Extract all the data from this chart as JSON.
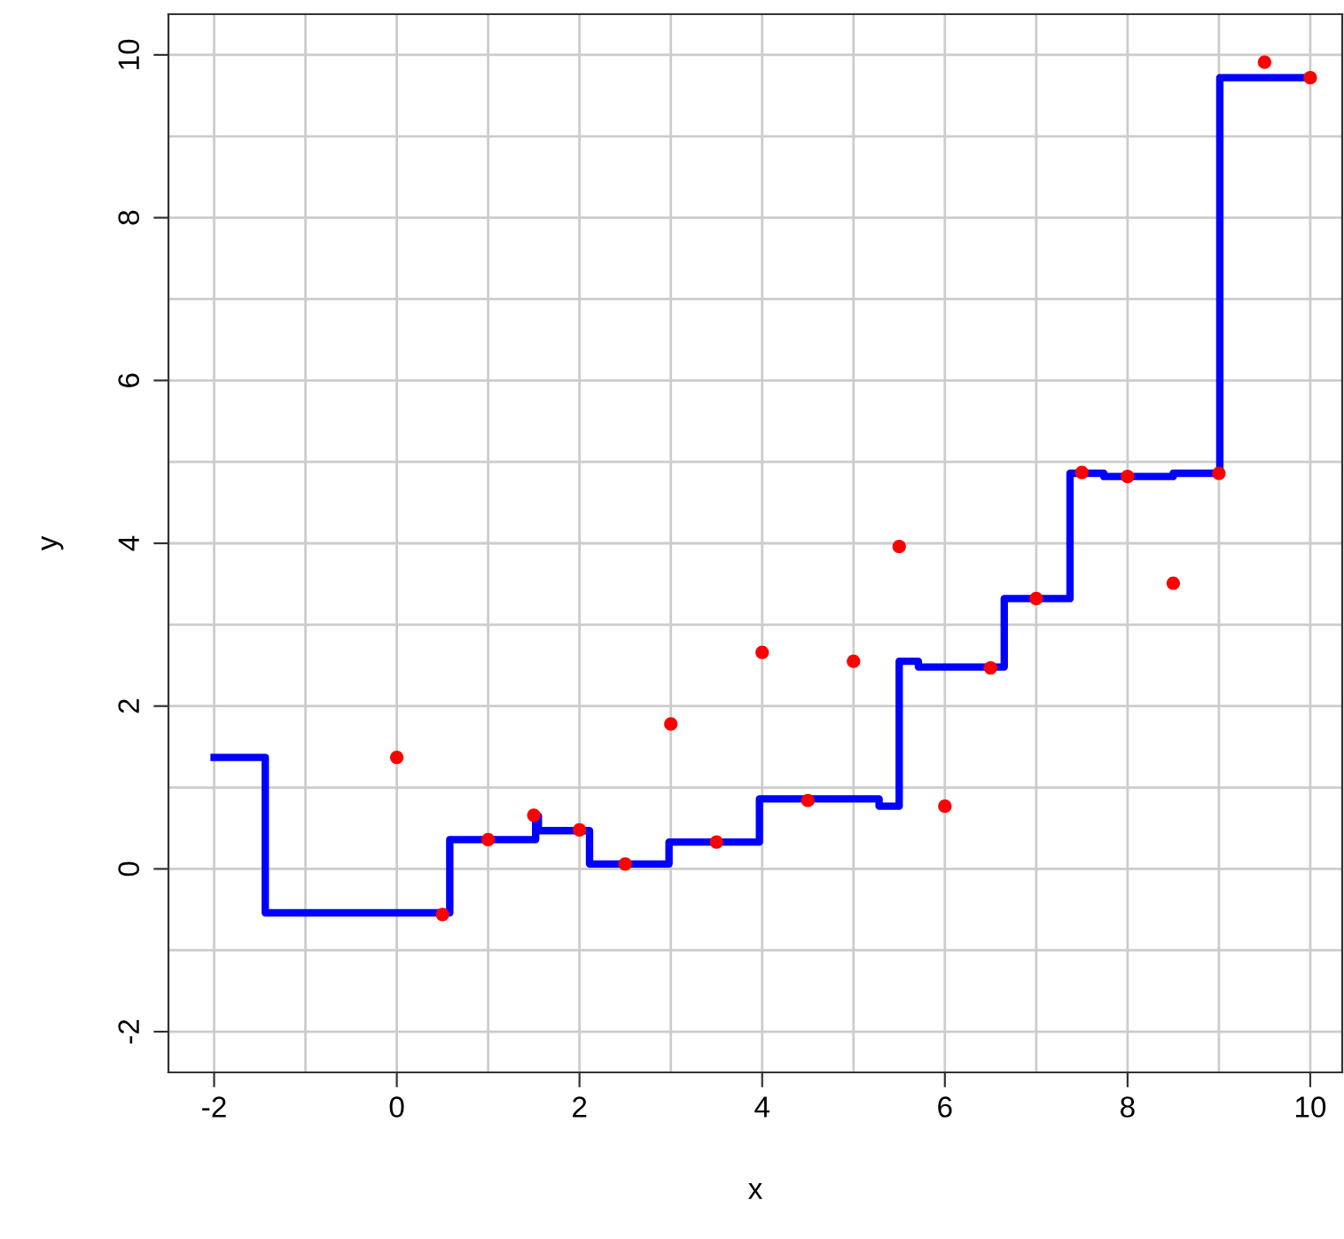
{
  "chart_data": {
    "type": "scatter",
    "xlabel": "x",
    "ylabel": "y",
    "xlim": [
      -2.5,
      10.35
    ],
    "ylim": [
      -2.5,
      10.5
    ],
    "xticks": [
      -2,
      0,
      2,
      4,
      6,
      8,
      10
    ],
    "yticks": [
      -2,
      0,
      2,
      4,
      6,
      8,
      10
    ],
    "grid": true,
    "series": [
      {
        "color": "#ff0000",
        "marker": "circle",
        "x": [
          0,
          0.5,
          1,
          1.5,
          2,
          2.5,
          3,
          3.5,
          4,
          4.5,
          5,
          5.5,
          6,
          6.5,
          7,
          7.5,
          8,
          8.5,
          9,
          9.5,
          10
        ],
        "values": [
          1.37,
          -0.56,
          0.36,
          0.66,
          0.48,
          0.06,
          1.78,
          0.33,
          2.66,
          0.84,
          2.55,
          3.96,
          0.77,
          2.47,
          3.32,
          4.87,
          4.82,
          3.51,
          4.86,
          9.91,
          9.72
        ]
      },
      {
        "type": "step",
        "color": "#0000ff",
        "line_style": "solid",
        "x": [
          -2,
          -1.44,
          0.58,
          1.52,
          1.55,
          2.11,
          2.98,
          3.97,
          5.28,
          5.5,
          5.71,
          6.65,
          7.37,
          7.74,
          8.5,
          9.01,
          10
        ],
        "values": [
          1.37,
          -0.54,
          0.36,
          0.65,
          0.47,
          0.06,
          0.33,
          0.86,
          0.77,
          2.55,
          2.48,
          3.32,
          4.86,
          4.82,
          4.86,
          9.72,
          9.72
        ]
      }
    ]
  }
}
